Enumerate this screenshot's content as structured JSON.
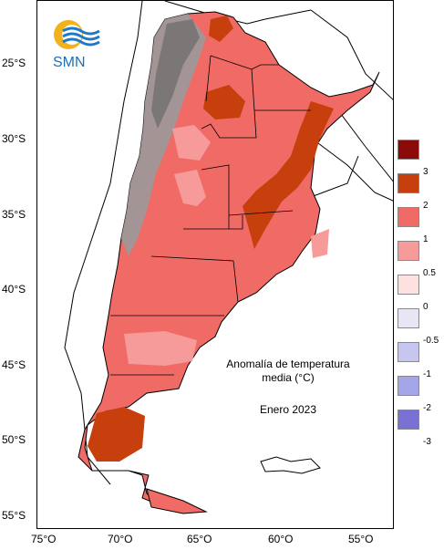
{
  "logo": {
    "text": "SMN",
    "icon": "smn-sun-waves-logo"
  },
  "title": {
    "line1": "Anomalía de temperatura",
    "line2": "media (°C)",
    "date": "Enero  2023"
  },
  "latitude_labels": [
    "25°S",
    "30°S",
    "35°S",
    "40°S",
    "45°S",
    "50°S",
    "55°S"
  ],
  "longitude_labels": [
    "75°O",
    "70°O",
    "65°O",
    "60°O",
    "55°O"
  ],
  "legend": {
    "ticks": [
      "3",
      "2",
      "1",
      "0.5",
      "0",
      "-0.5",
      "-1",
      "-2",
      "-3"
    ],
    "colors": [
      "#8b0a0a",
      "#c63f0c",
      "#f06a66",
      "#f79a9a",
      "#fde0e0",
      "#e6e6f5",
      "#c6c6f0",
      "#a5a5ea",
      "#7a72d2"
    ]
  },
  "colors": {
    "anomaly_above_2": "#c63f0c",
    "anomaly_1_to_2": "#f06a66",
    "anomaly_05_to_1": "#f79a9a",
    "mountains": "#8a8a8a",
    "water": "#ffffff",
    "borders": "#000000"
  }
}
